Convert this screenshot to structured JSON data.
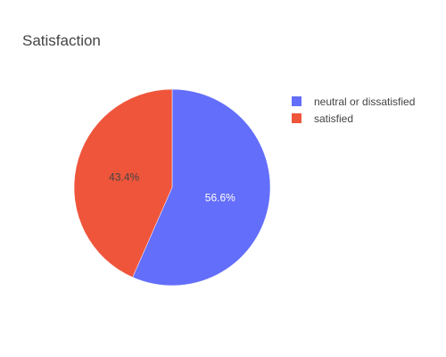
{
  "chart_data": {
    "type": "pie",
    "title": "Satisfaction",
    "labels": [
      "neutral or dissatisfied",
      "satisfied"
    ],
    "values": [
      56.6,
      43.4
    ],
    "value_labels": [
      "56.6%",
      "43.4%"
    ],
    "colors": [
      "#636efa",
      "#ef553b"
    ],
    "label_colors": [
      "#ffffff",
      "#444444"
    ],
    "legend_position": "top-right",
    "direction": "clockwise",
    "start": "12 o'clock"
  }
}
